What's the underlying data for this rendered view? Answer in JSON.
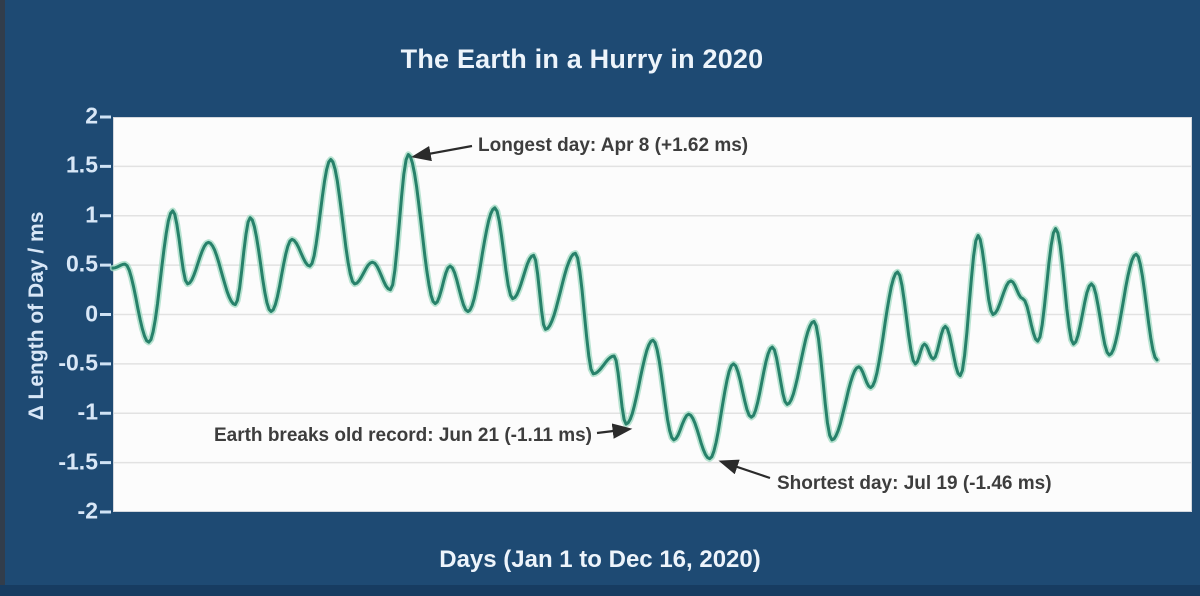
{
  "title": "The Earth in a Hurry in 2020",
  "colors": {
    "background": "#1e4a73",
    "edge_left": "#323d4b",
    "edge_bottom": "#173c61",
    "title_text": "#edf4fb",
    "tick_text": "#d8e7f7",
    "axis_label_text": "#d8e7f7",
    "plot_background": "#fcfcfc",
    "grid": "#e2e2e2",
    "tick_mark": "#cfe2f4",
    "line_core": "#27816a",
    "line_glow": "#a6dcc6",
    "annotation_text": "#3d3d3d",
    "arrow": "#2b2b2b"
  },
  "chart_data": {
    "type": "line",
    "title": "The Earth in a Hurry in 2020",
    "xlabel": "Days (Jan 1 to Dec 16, 2020)",
    "ylabel": "Δ Length of Day / ms",
    "x_unit": "days since Jan 1, 2020",
    "xlim": [
      0,
      361
    ],
    "ylim": [
      -2,
      2
    ],
    "grid": true,
    "legend": "none",
    "yticks": [
      {
        "value": 2,
        "label": "2"
      },
      {
        "value": 1.5,
        "label": "1.5"
      },
      {
        "value": 1,
        "label": "1"
      },
      {
        "value": 0.5,
        "label": "0.5"
      },
      {
        "value": 0,
        "label": "0"
      },
      {
        "value": -0.5,
        "label": "-0.5"
      },
      {
        "value": -1,
        "label": "-1"
      },
      {
        "value": -1.5,
        "label": "-1.5"
      },
      {
        "value": -2,
        "label": "-2"
      }
    ],
    "series": [
      {
        "name": "delta-length-of-day-ms",
        "points": [
          [
            0,
            0.47
          ],
          [
            4,
            0.51
          ],
          [
            12,
            -0.28
          ],
          [
            20,
            1.05
          ],
          [
            25,
            0.31
          ],
          [
            32,
            0.73
          ],
          [
            41,
            0.1
          ],
          [
            46,
            0.98
          ],
          [
            53,
            0.03
          ],
          [
            60,
            0.76
          ],
          [
            66,
            0.49
          ],
          [
            73,
            1.57
          ],
          [
            81,
            0.31
          ],
          [
            87,
            0.53
          ],
          [
            93,
            0.25
          ],
          [
            99,
            1.62
          ],
          [
            108,
            0.11
          ],
          [
            113,
            0.49
          ],
          [
            119,
            0.03
          ],
          [
            128,
            1.08
          ],
          [
            134,
            0.16
          ],
          [
            141,
            0.6
          ],
          [
            145,
            -0.15
          ],
          [
            155,
            0.62
          ],
          [
            161,
            -0.6
          ],
          [
            168,
            -0.42
          ],
          [
            172,
            -1.11
          ],
          [
            181,
            -0.26
          ],
          [
            188,
            -1.27
          ],
          [
            193,
            -1.01
          ],
          [
            200,
            -1.46
          ],
          [
            208,
            -0.5
          ],
          [
            214,
            -1.04
          ],
          [
            221,
            -0.33
          ],
          [
            226,
            -0.91
          ],
          [
            235,
            -0.07
          ],
          [
            241,
            -1.27
          ],
          [
            250,
            -0.53
          ],
          [
            254,
            -0.74
          ],
          [
            263,
            0.43
          ],
          [
            269,
            -0.5
          ],
          [
            272,
            -0.3
          ],
          [
            275,
            -0.45
          ],
          [
            279,
            -0.12
          ],
          [
            284,
            -0.62
          ],
          [
            290,
            0.8
          ],
          [
            295,
            0.0
          ],
          [
            301,
            0.34
          ],
          [
            305,
            0.16
          ],
          [
            310,
            -0.27
          ],
          [
            316,
            0.87
          ],
          [
            322,
            -0.3
          ],
          [
            328,
            0.31
          ],
          [
            334,
            -0.41
          ],
          [
            343,
            0.61
          ],
          [
            350,
            -0.46
          ]
        ]
      }
    ],
    "annotations": [
      {
        "label": "Longest day: Apr 8 (+1.62 ms)",
        "day": 99,
        "value": 1.62
      },
      {
        "label": "Earth breaks old record: Jun 21 (-1.11 ms)",
        "day": 172,
        "value": -1.11
      },
      {
        "label": "Shortest day: Jul 19 (-1.46 ms)",
        "day": 200,
        "value": -1.46
      }
    ]
  }
}
